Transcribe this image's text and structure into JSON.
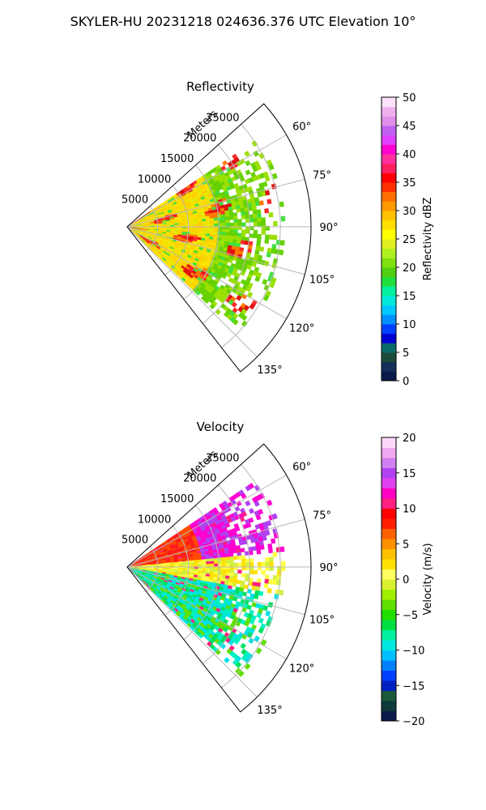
{
  "figure": {
    "suptitle": "SKYLER-HU  20231218  024636.376 UTC Elevation 10°"
  },
  "chart_data": [
    {
      "type": "heatmap",
      "title": "Reflectivity",
      "projection": "polar sector",
      "range_label": "Meters",
      "range_ticks": [
        "5000",
        "10000",
        "15000",
        "20000",
        "25000"
      ],
      "range_lim": [
        0,
        30000
      ],
      "azimuth_lim": [
        48,
        142
      ],
      "azimuth_ticks": [
        "60°",
        "75°",
        "90°",
        "105°",
        "120°",
        "135°"
      ],
      "grid": true,
      "colorbar": {
        "label": "Reflectivity dBZ",
        "range": [
          0,
          50
        ],
        "ticks": [
          "0",
          "5",
          "10",
          "15",
          "20",
          "25",
          "30",
          "35",
          "40",
          "45",
          "50"
        ],
        "colors": [
          "#0a1a4a",
          "#14305a",
          "#1c4a3a",
          "#0a6a6a",
          "#0000d0",
          "#0040ff",
          "#0090ff",
          "#00c8ff",
          "#00e8d8",
          "#00f0a0",
          "#20e040",
          "#50d010",
          "#80e010",
          "#b0f020",
          "#e0f020",
          "#ffff00",
          "#ffe000",
          "#ffc000",
          "#ff9a00",
          "#ff7000",
          "#ff3000",
          "#ff0000",
          "#ff2060",
          "#ff30a0",
          "#ff00d0",
          "#e040ff",
          "#c060f0",
          "#e090e8",
          "#f0b0f0",
          "#fce0fc"
        ]
      },
      "echo_colors": [
        "#e8e400",
        "#ffe000",
        "#ffcf00",
        "#9ae000",
        "#66d200",
        "#ff2a2a",
        "#e01010",
        "#ff7a00",
        "#40e040",
        "#00e8c8"
      ]
    },
    {
      "type": "heatmap",
      "title": "Velocity",
      "projection": "polar sector",
      "range_label": "Meters",
      "range_ticks": [
        "5000",
        "10000",
        "15000",
        "20000",
        "25000"
      ],
      "range_lim": [
        0,
        30000
      ],
      "azimuth_lim": [
        48,
        142
      ],
      "azimuth_ticks": [
        "60°",
        "75°",
        "90°",
        "105°",
        "120°",
        "135°"
      ],
      "grid": true,
      "colorbar": {
        "label": "Velocity (m/s)",
        "range": [
          -20,
          20
        ],
        "ticks": [
          "−20",
          "−15",
          "−10",
          "−5",
          "0",
          "5",
          "10",
          "15",
          "20"
        ],
        "colors": [
          "#0a1a4a",
          "#0e3a3a",
          "#1a5a3a",
          "#0020c0",
          "#0040ff",
          "#0080ff",
          "#00c0ff",
          "#00e8e0",
          "#00f0a0",
          "#00e040",
          "#20e000",
          "#60e000",
          "#a0f000",
          "#d8f030",
          "#ffff60",
          "#ffe000",
          "#ffc000",
          "#ff9000",
          "#ff6000",
          "#ff2000",
          "#ff0000",
          "#ff2080",
          "#ff00c0",
          "#e040f0",
          "#b040f0",
          "#d080f0",
          "#f0a8f0",
          "#fcd8fc"
        ]
      },
      "echo_colors": [
        "#ff1a1a",
        "#ff4a00",
        "#ff00d0",
        "#b040f0",
        "#ffe000",
        "#ffff40",
        "#d0f040",
        "#60e000",
        "#00e060",
        "#00f0c0",
        "#00e0e8",
        "#ff2080"
      ]
    }
  ]
}
